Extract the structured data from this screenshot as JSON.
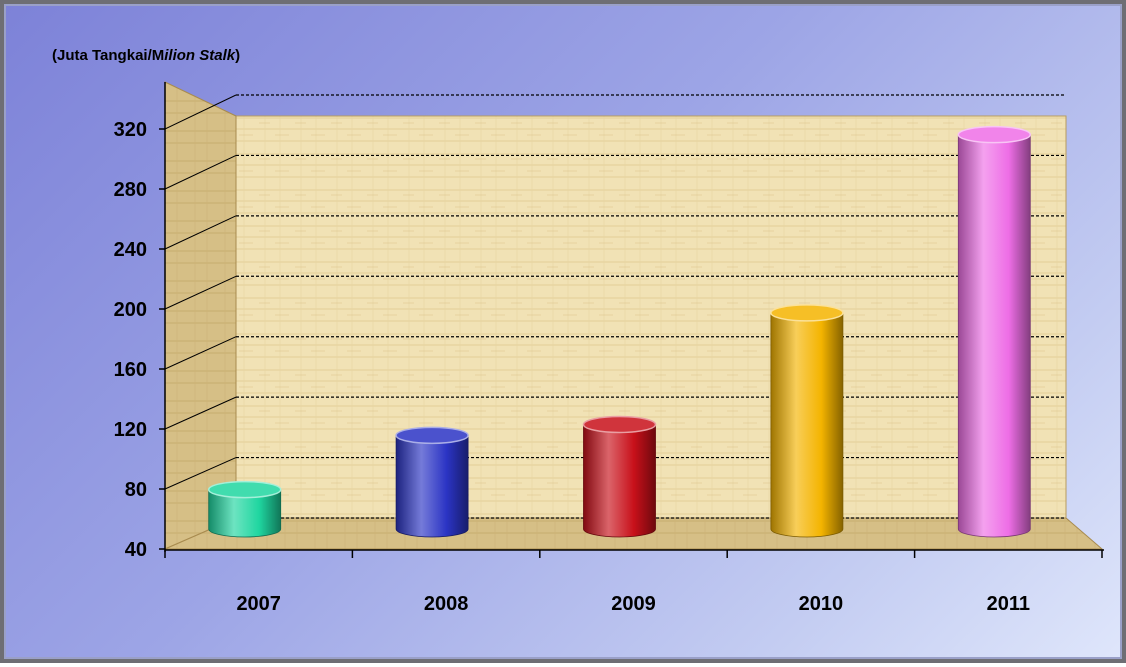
{
  "chart_data": {
    "type": "bar",
    "subtype": "3d-cylinder",
    "ylabel_parts": [
      {
        "text": "(Juta Tangkai/M",
        "italic": false
      },
      {
        "text": "ilion  Stalk",
        "italic": true
      },
      {
        "text": ")",
        "italic": false
      }
    ],
    "categories": [
      "2007",
      "2008",
      "2009",
      "2010",
      "2011"
    ],
    "values": [
      68,
      103,
      110,
      182,
      297
    ],
    "ylim": [
      40,
      320
    ],
    "yticks": [
      40,
      80,
      120,
      160,
      200,
      240,
      280,
      320
    ],
    "grid": true,
    "legend": "none",
    "colors": [
      "#1fd6a0",
      "#2b34c4",
      "#c8101a",
      "#f4b400",
      "#ee6ee6"
    ]
  }
}
